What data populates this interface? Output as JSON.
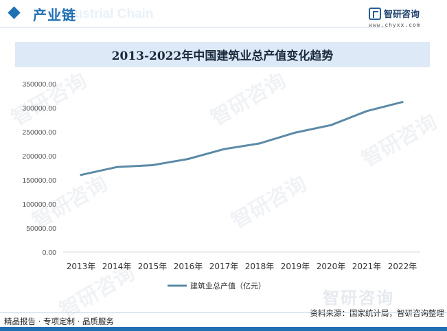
{
  "header": {
    "title": "产业链",
    "ghost": "Industrial Chain"
  },
  "logo": {
    "name": "智研咨询",
    "url": "www.chyxx.com"
  },
  "watermark_text": "智研咨询",
  "chart_data": {
    "type": "line",
    "title": "2013-2022年中国建筑业总产值变化趋势",
    "xlabel": "",
    "ylabel": "",
    "categories": [
      "2013年",
      "2014年",
      "2015年",
      "2016年",
      "2017年",
      "2018年",
      "2019年",
      "2020年",
      "2021年",
      "2022年"
    ],
    "y_ticks": [
      "0.00",
      "50000.00",
      "100000.00",
      "150000.00",
      "200000.00",
      "250000.00",
      "300000.00",
      "350000.00"
    ],
    "ylim": [
      0,
      350000
    ],
    "grid": false,
    "legend_position": "bottom",
    "series": [
      {
        "name": "建筑业总产值（亿元）",
        "color": "#5b8aa6",
        "values": [
          160366,
          176713,
          180757,
          193567,
          213944,
          225817,
          248443,
          263947,
          293079,
          311980
        ]
      }
    ]
  },
  "footer": {
    "left": "精品报告 · 专项定制 · 品质服务",
    "right": "资料来源：国家统计局，智研咨询整理"
  }
}
